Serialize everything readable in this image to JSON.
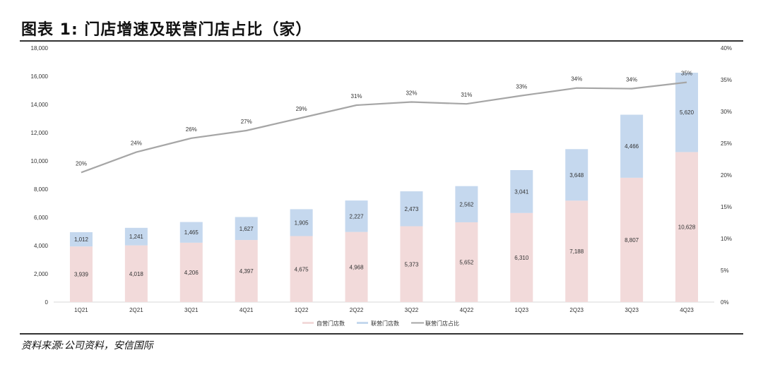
{
  "title": "图表 1: 门店增速及联营门店占比（家）",
  "source": "资料来源:公司资料，安信国际",
  "chart_data": {
    "type": "bar",
    "stacked": true,
    "categories": [
      "1Q21",
      "2Q21",
      "3Q21",
      "4Q21",
      "1Q22",
      "2Q22",
      "3Q22",
      "4Q22",
      "1Q23",
      "2Q23",
      "3Q23",
      "4Q23"
    ],
    "series": [
      {
        "name": "自营门店数",
        "type": "bar",
        "color": "#f2dada",
        "values": [
          3939,
          4018,
          4206,
          4397,
          4675,
          4968,
          5373,
          5652,
          6310,
          7188,
          8807,
          10628
        ]
      },
      {
        "name": "联营门店数",
        "type": "bar",
        "color": "#c5d8ee",
        "values": [
          1012,
          1241,
          1465,
          1627,
          1905,
          2227,
          2473,
          2562,
          3041,
          3648,
          4466,
          5620
        ]
      },
      {
        "name": "联营门店占比",
        "type": "line",
        "axis": "right",
        "color": "#a6a6a6",
        "values": [
          20.4,
          23.6,
          25.8,
          27.0,
          29.0,
          31.0,
          31.5,
          31.2,
          32.5,
          33.7,
          33.6,
          34.6
        ],
        "labels": [
          "20%",
          "24%",
          "26%",
          "27%",
          "29%",
          "31%",
          "32%",
          "31%",
          "33%",
          "34%",
          "34%",
          "35%"
        ]
      }
    ],
    "y_left": {
      "range": [
        0,
        18000
      ],
      "ticks": [
        "0",
        "2,000",
        "4,000",
        "6,000",
        "8,000",
        "10,000",
        "12,000",
        "14,000",
        "16,000",
        "18,000"
      ]
    },
    "y_right": {
      "range": [
        0,
        40
      ],
      "ticks": [
        "0%",
        "5%",
        "10%",
        "15%",
        "20%",
        "25%",
        "30%",
        "35%",
        "40%"
      ]
    },
    "grid": false,
    "legend": "bottom"
  }
}
